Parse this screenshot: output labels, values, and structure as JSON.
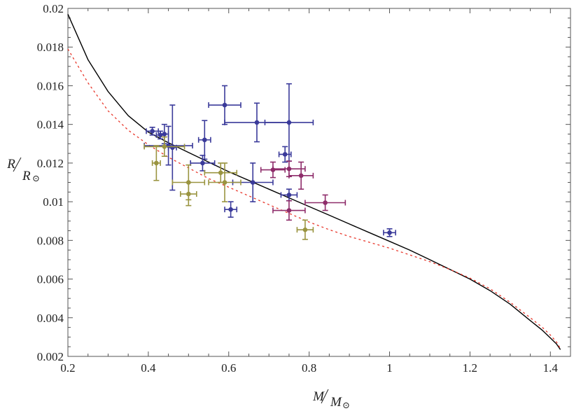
{
  "chart_data": {
    "type": "scatter",
    "title": "",
    "xlabel": {
      "numerator": "M",
      "denominator": "M",
      "sub": "⊙"
    },
    "ylabel": {
      "numerator": "R",
      "denominator": "R",
      "sub": "⊙"
    },
    "xlim": [
      0.2,
      1.45
    ],
    "ylim": [
      0.002,
      0.02
    ],
    "x_ticks": [
      0.2,
      0.4,
      0.6,
      0.8,
      1,
      1.2,
      1.4
    ],
    "x_tick_labels": [
      "0.2",
      "0.4",
      "0.6",
      "0.8",
      "1",
      "1.2",
      "1.4"
    ],
    "y_ticks": [
      0.002,
      0.004,
      0.006,
      0.008,
      0.01,
      0.012,
      0.014,
      0.016,
      0.018,
      0.02
    ],
    "y_tick_labels": [
      "0.002",
      "0.004",
      "0.006",
      "0.008",
      "0.01",
      "0.012",
      "0.014",
      "0.016",
      "0.018",
      "0.02"
    ],
    "grid": false,
    "frame": true,
    "curves": [
      {
        "style": "solid",
        "color": "#000000",
        "x": [
          0.2,
          0.25,
          0.3,
          0.35,
          0.4,
          0.45,
          0.5,
          0.55,
          0.6,
          0.65,
          0.7,
          0.75,
          0.8,
          0.85,
          0.9,
          0.95,
          1.0,
          1.05,
          1.1,
          1.15,
          1.2,
          1.25,
          1.3,
          1.35,
          1.38,
          1.4,
          1.415,
          1.425
        ],
        "y": [
          0.0197,
          0.01735,
          0.0157,
          0.01445,
          0.0136,
          0.01305,
          0.01255,
          0.01205,
          0.01155,
          0.0111,
          0.01065,
          0.0102,
          0.00975,
          0.0093,
          0.00885,
          0.0084,
          0.00795,
          0.0075,
          0.007,
          0.0065,
          0.006,
          0.0054,
          0.0047,
          0.00385,
          0.00335,
          0.00295,
          0.00265,
          0.00235
        ]
      },
      {
        "style": "dashed",
        "color": "#e8372b",
        "x": [
          0.2,
          0.25,
          0.3,
          0.35,
          0.4,
          0.45,
          0.5,
          0.55,
          0.6,
          0.65,
          0.7,
          0.75,
          0.8,
          0.85,
          0.9,
          0.95,
          1.0,
          1.05,
          1.1,
          1.15,
          1.2,
          1.25,
          1.3,
          1.35,
          1.38,
          1.4,
          1.415,
          1.425
        ],
        "y": [
          0.0179,
          0.01615,
          0.0147,
          0.0137,
          0.01295,
          0.0123,
          0.01175,
          0.0112,
          0.01075,
          0.0103,
          0.00985,
          0.0094,
          0.00895,
          0.00855,
          0.0082,
          0.0079,
          0.0076,
          0.00725,
          0.0069,
          0.0065,
          0.00605,
          0.0055,
          0.0048,
          0.004,
          0.0035,
          0.0031,
          0.00275,
          0.0024
        ]
      }
    ],
    "series": [
      {
        "color": "#3a3a9a",
        "points": [
          {
            "x": 0.41,
            "y": 0.01365,
            "xerr": 0.015,
            "yerr": 0.0002
          },
          {
            "x": 0.43,
            "y": 0.01345,
            "xerr": 0.01,
            "yerr": 0.0002
          },
          {
            "x": 0.44,
            "y": 0.0135,
            "xerr": 0.01,
            "yerr": 0.0005
          },
          {
            "x": 0.46,
            "y": 0.0128,
            "xerr": 0.01,
            "yerr": 0.0022
          },
          {
            "x": 0.45,
            "y": 0.0129,
            "xerr": 0.06,
            "yerr": 0.001
          },
          {
            "x": 0.535,
            "y": 0.012,
            "xerr": 0.03,
            "yerr": 0.0004
          },
          {
            "x": 0.54,
            "y": 0.0132,
            "xerr": 0.015,
            "yerr": 0.001
          },
          {
            "x": 0.59,
            "y": 0.015,
            "xerr": 0.04,
            "yerr": 0.001
          },
          {
            "x": 0.67,
            "y": 0.0141,
            "xerr": 0.08,
            "yerr": 0.001
          },
          {
            "x": 0.75,
            "y": 0.0141,
            "xerr": 0.06,
            "yerr": 0.002
          },
          {
            "x": 0.74,
            "y": 0.01245,
            "xerr": 0.015,
            "yerr": 0.0004
          },
          {
            "x": 0.66,
            "y": 0.011,
            "xerr": 0.05,
            "yerr": 0.001
          },
          {
            "x": 0.605,
            "y": 0.0096,
            "xerr": 0.015,
            "yerr": 0.0004
          },
          {
            "x": 0.75,
            "y": 0.01035,
            "xerr": 0.02,
            "yerr": 0.0003
          },
          {
            "x": 1.0,
            "y": 0.0084,
            "xerr": 0.015,
            "yerr": 0.0002
          }
        ]
      },
      {
        "color": "#9a9440",
        "points": [
          {
            "x": 0.44,
            "y": 0.01285,
            "xerr": 0.05,
            "yerr": 0.0005
          },
          {
            "x": 0.42,
            "y": 0.012,
            "xerr": 0.01,
            "yerr": 0.0009
          },
          {
            "x": 0.5,
            "y": 0.011,
            "xerr": 0.04,
            "yerr": 0.0009
          },
          {
            "x": 0.5,
            "y": 0.0104,
            "xerr": 0.02,
            "yerr": 0.0006
          },
          {
            "x": 0.58,
            "y": 0.0115,
            "xerr": 0.04,
            "yerr": 0.0005
          },
          {
            "x": 0.59,
            "y": 0.011,
            "xerr": 0.04,
            "yerr": 0.001
          },
          {
            "x": 0.79,
            "y": 0.00855,
            "xerr": 0.02,
            "yerr": 0.0005
          }
        ]
      },
      {
        "color": "#8e2c6a",
        "points": [
          {
            "x": 0.71,
            "y": 0.01165,
            "xerr": 0.03,
            "yerr": 0.0004
          },
          {
            "x": 0.75,
            "y": 0.0117,
            "xerr": 0.04,
            "yerr": 0.0004
          },
          {
            "x": 0.78,
            "y": 0.01135,
            "xerr": 0.03,
            "yerr": 0.0007
          },
          {
            "x": 0.75,
            "y": 0.00955,
            "xerr": 0.04,
            "yerr": 0.0005
          },
          {
            "x": 0.84,
            "y": 0.00995,
            "xerr": 0.05,
            "yerr": 0.0004
          }
        ]
      }
    ]
  }
}
